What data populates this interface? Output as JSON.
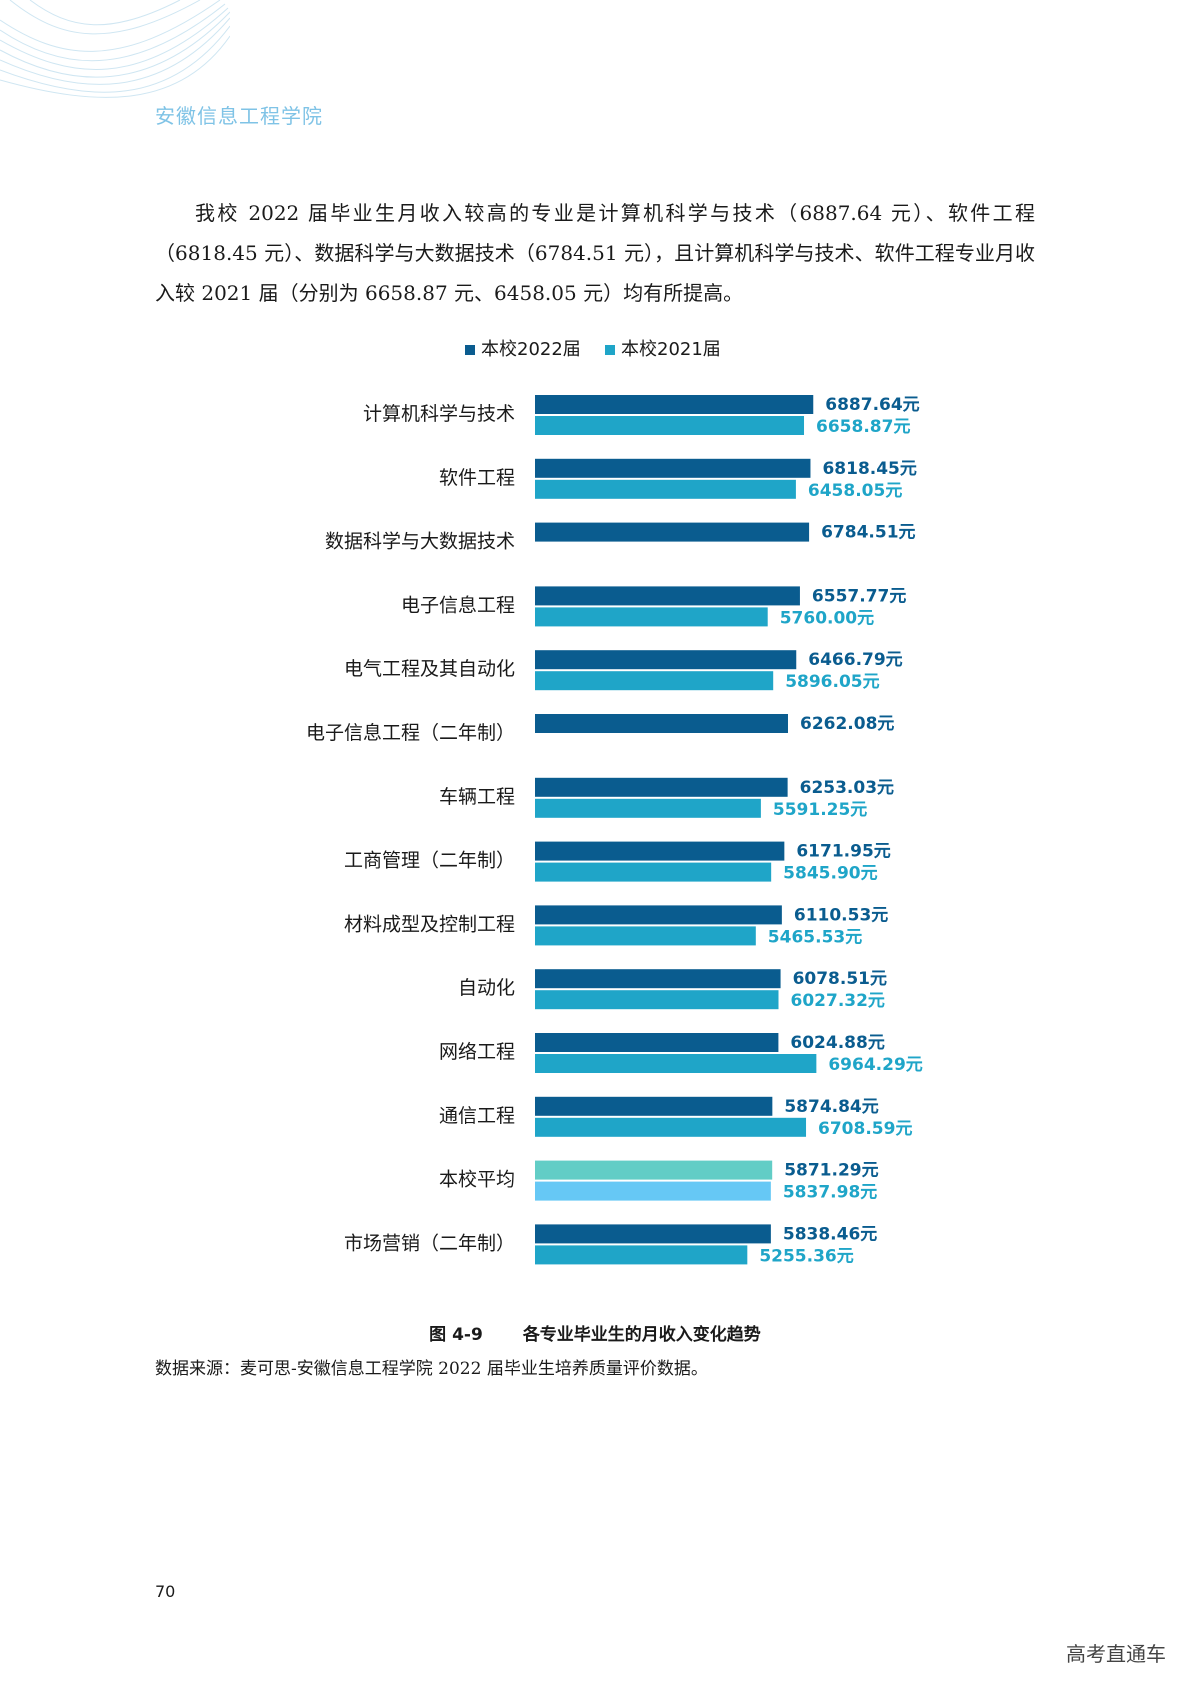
{
  "header": {
    "school_name": "安徽信息工程学院"
  },
  "paragraph": "我校 2022 届毕业生月收入较高的专业是计算机科学与技术（6887.64 元）、软件工程（6818.45 元）、数据科学与大数据技术（6784.51 元），且计算机科学与技术、软件工程专业月收入较 2021 届（分别为 6658.87 元、6458.05 元）均有所提高。",
  "figure": {
    "number": "图 4-9",
    "title": "各专业毕业生的月收入变化趋势"
  },
  "source_note": "数据来源：麦可思-安徽信息工程学院 2022 届毕业生培养质量评价数据。",
  "page_number": "70",
  "watermark": "高考直通车",
  "colors": {
    "series_2022": "#0a5c8f",
    "series_2021": "#1fa5c8",
    "avg_2022": "#62cdc6",
    "avg_2021": "#66c8f5",
    "label_2021": "#1fa5c8"
  },
  "chart_data": {
    "type": "bar",
    "orientation": "horizontal",
    "title": "",
    "xlabel": "",
    "ylabel": "",
    "unit_suffix": "元",
    "legend_position": "top",
    "grid": false,
    "xlim": [
      0,
      7000
    ],
    "categories": [
      "计算机科学与技术",
      "软件工程",
      "数据科学与大数据技术",
      "电子信息工程",
      "电气工程及其自动化",
      "电子信息工程（二年制）",
      "车辆工程",
      "工商管理（二年制）",
      "材料成型及控制工程",
      "自动化",
      "网络工程",
      "通信工程",
      "本校平均",
      "市场营销（二年制）"
    ],
    "series": [
      {
        "name": "本校2022届",
        "values": [
          6887.64,
          6818.45,
          6784.51,
          6557.77,
          6466.79,
          6262.08,
          6253.03,
          6171.95,
          6110.53,
          6078.51,
          6024.88,
          5874.84,
          5871.29,
          5838.46
        ],
        "labels": [
          "6887.64元",
          "6818.45元",
          "6784.51元",
          "6557.77元",
          "6466.79元",
          "6262.08元",
          "6253.03元",
          "6171.95元",
          "6110.53元",
          "6078.51元",
          "6024.88元",
          "5874.84元",
          "5871.29元",
          "5838.46元"
        ]
      },
      {
        "name": "本校2021届",
        "values": [
          6658.87,
          6458.05,
          null,
          5760.0,
          5896.05,
          null,
          5591.25,
          5845.9,
          5465.53,
          6027.32,
          6964.29,
          6708.59,
          5837.98,
          5255.36
        ],
        "labels": [
          "6658.87元",
          "6458.05元",
          null,
          "5760.00元",
          "5896.05元",
          null,
          "5591.25元",
          "5845.90元",
          "5465.53元",
          "6027.32元",
          "6964.29元",
          "6708.59元",
          "5837.98元",
          "5255.36元"
        ]
      }
    ],
    "highlight_category": "本校平均"
  }
}
